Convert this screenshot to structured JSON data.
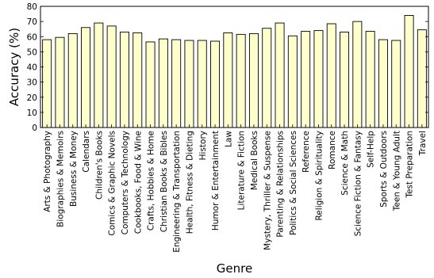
{
  "chart_data": {
    "type": "bar",
    "xlabel": "Genre",
    "ylabel": "Accuracy (%)",
    "ylim": [
      0,
      80
    ],
    "yticks": [
      0,
      10,
      20,
      30,
      40,
      50,
      60,
      70,
      80
    ],
    "grid": false,
    "bar_color": "#ffffcc",
    "categories": [
      "Arts & Photography",
      "Biographies & Memoirs",
      "Business & Money",
      "Calendars",
      "Children's Books",
      "Comics & Graphic Novels",
      "Computers & Technology",
      "Cookbooks, Food & Wine",
      "Crafts, Hobbies & Home",
      "Christian Books & Bibles",
      "Engineering & Transportation",
      "Health, Fitness & Dieting",
      "History",
      "Humor & Entertainment",
      "Law",
      "Literature & Fiction",
      "Medical Books",
      "Mystery, Thriller & Suspense",
      "Parenting & Relationships",
      "Politics & Social Sciences",
      "Reference",
      "Religion & Spirituality",
      "Romance",
      "Science & Math",
      "Science Fiction & Fantasy",
      "Self-Help",
      "Sports & Outdoors",
      "Teen & Young Adult",
      "Test Preparation",
      "Travel"
    ],
    "values": [
      58,
      59.5,
      62,
      66,
      69,
      67,
      63,
      62.5,
      56.5,
      58.5,
      58,
      57.5,
      57.5,
      57,
      62.5,
      61.5,
      62,
      65.5,
      69,
      60.5,
      63.5,
      64,
      68.5,
      63,
      70,
      63.5,
      58,
      57.5,
      74,
      64.5
    ]
  }
}
